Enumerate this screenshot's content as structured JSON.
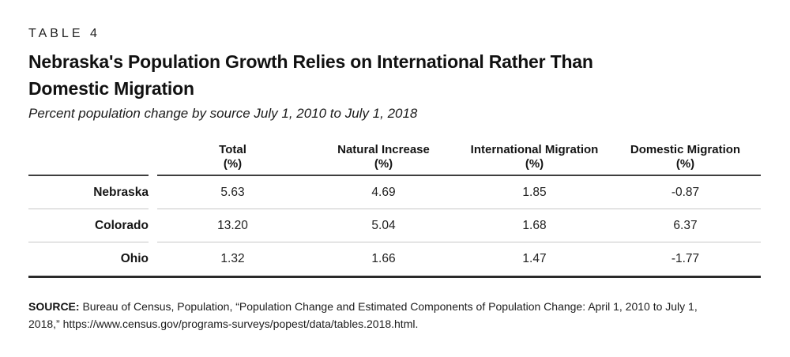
{
  "kicker": "TABLE 4",
  "title_lines": [
    "Nebraska's Population Growth Relies on International Rather Than",
    "Domestic Migration"
  ],
  "subtitle": "Percent population change by source July 1, 2010 to July 1, 2018",
  "table": {
    "columns": [
      {
        "label": "Total",
        "unit": "(%)"
      },
      {
        "label": "Natural Increase",
        "unit": "(%)"
      },
      {
        "label": "International Migration",
        "unit": "(%)"
      },
      {
        "label": "Domestic Migration",
        "unit": "(%)"
      }
    ],
    "rows": [
      {
        "label": "Nebraska",
        "values": [
          "5.63",
          "4.69",
          "1.85",
          "-0.87"
        ]
      },
      {
        "label": "Colorado",
        "values": [
          "13.20",
          "5.04",
          "1.68",
          "6.37"
        ]
      },
      {
        "label": "Ohio",
        "values": [
          "1.32",
          "1.66",
          "1.47",
          "-1.77"
        ]
      }
    ]
  },
  "source": {
    "label": "SOURCE:",
    "text": " Bureau of Census, Population, “Population Change and Estimated Components of Population Change: April 1, 2010 to July 1, 2018,” https://www.census.gov/programs-surveys/popest/data/tables.2018.html."
  },
  "colors": {
    "header_rule": "#3e3e3e",
    "row_divider": "#c7c7c7",
    "bottom_rule": "#2a2a2a",
    "text": "#1a1a1a",
    "background": "#ffffff"
  }
}
